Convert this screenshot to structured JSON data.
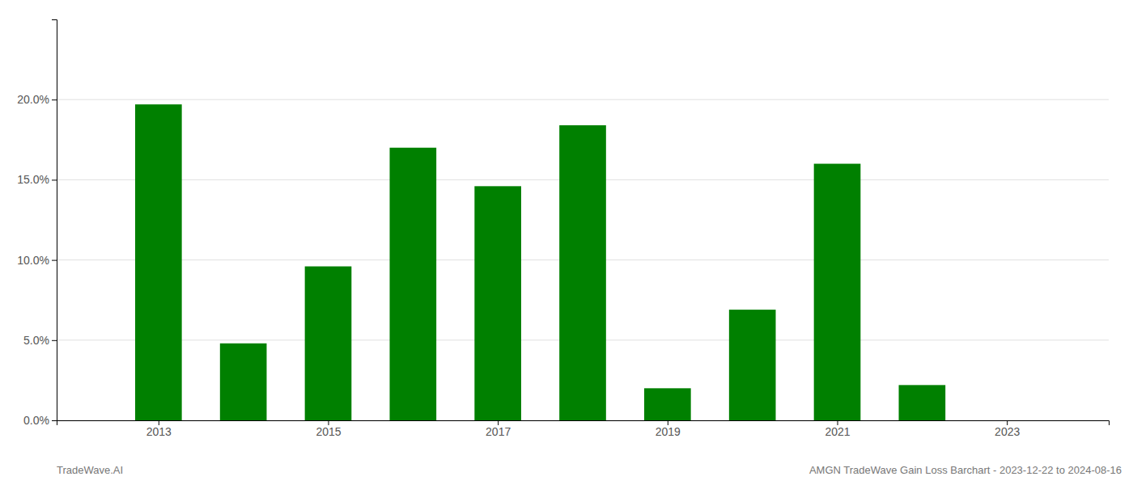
{
  "chart_data": {
    "type": "bar",
    "x": [
      2013,
      2014,
      2015,
      2016,
      2017,
      2018,
      2019,
      2020,
      2021,
      2022,
      2023
    ],
    "values": [
      0.197,
      0.048,
      0.096,
      0.17,
      0.146,
      0.184,
      0.02,
      0.069,
      0.16,
      0.022,
      0.0
    ],
    "color": "#008000",
    "xlim": [
      2011.8,
      2024.2
    ],
    "xticks": [
      2013,
      2015,
      2017,
      2019,
      2021,
      2023
    ],
    "ylim": [
      0.0,
      0.25
    ],
    "yticks": [
      {
        "value": 0.0,
        "label": "0.0%"
      },
      {
        "value": 0.05,
        "label": "5.0%"
      },
      {
        "value": 0.1,
        "label": "10.0%"
      },
      {
        "value": 0.15,
        "label": "15.0%"
      },
      {
        "value": 0.2,
        "label": "20.0%"
      }
    ],
    "grid": true,
    "annotations": [
      "TradeWave.AI",
      "AMGN TradeWave Gain Loss Barchart - 2023-12-22 to 2024-08-16"
    ]
  }
}
